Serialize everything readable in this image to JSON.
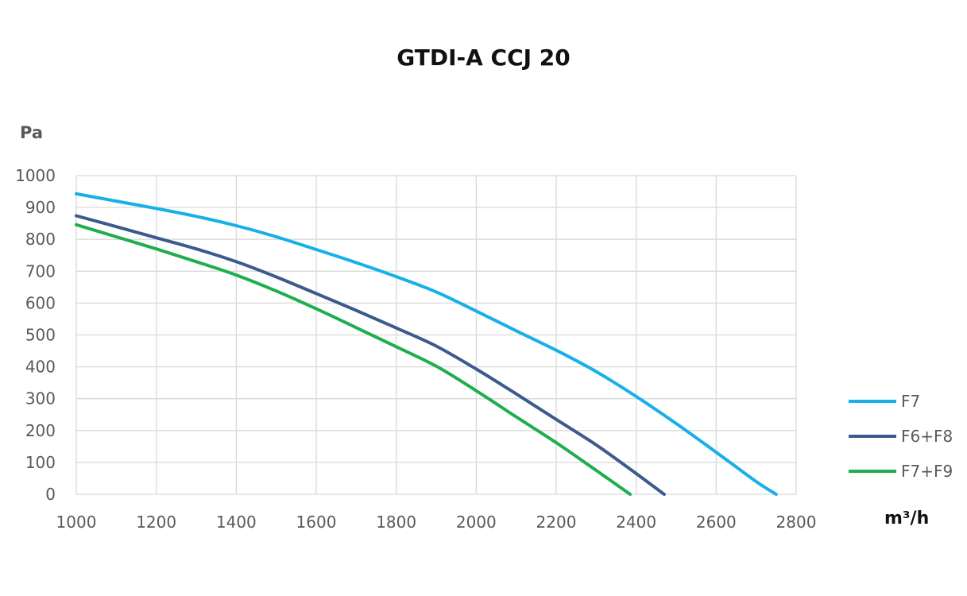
{
  "chart_data": {
    "type": "line",
    "title": "GTDI-A CCJ 20",
    "ylabel": "Pa",
    "xlabel": "m³/h",
    "xlim": [
      1000,
      2800
    ],
    "ylim": [
      0,
      1000
    ],
    "xticks": [
      1000,
      1200,
      1400,
      1600,
      1800,
      2000,
      2200,
      2400,
      2600,
      2800
    ],
    "yticks": [
      0,
      100,
      200,
      300,
      400,
      500,
      600,
      700,
      800,
      900,
      1000
    ],
    "grid": true,
    "legend_position": "right",
    "series": [
      {
        "name": "F7",
        "color": "#18b0e8",
        "x": [
          1000,
          1100,
          1200,
          1300,
          1400,
          1500,
          1600,
          1700,
          1800,
          1900,
          2000,
          2100,
          2200,
          2300,
          2400,
          2500,
          2600,
          2700,
          2750
        ],
        "y": [
          943,
          920,
          897,
          872,
          843,
          808,
          768,
          727,
          683,
          635,
          575,
          513,
          452,
          385,
          307,
          222,
          132,
          40,
          0
        ]
      },
      {
        "name": "F6+F8",
        "color": "#3c5a8e",
        "x": [
          1000,
          1100,
          1200,
          1300,
          1400,
          1500,
          1600,
          1700,
          1800,
          1900,
          2000,
          2100,
          2200,
          2300,
          2400,
          2470
        ],
        "y": [
          874,
          840,
          805,
          770,
          730,
          682,
          630,
          577,
          522,
          465,
          393,
          315,
          235,
          155,
          65,
          0
        ]
      },
      {
        "name": "F7+F9",
        "color": "#1fae4e",
        "x": [
          1000,
          1100,
          1200,
          1300,
          1400,
          1500,
          1600,
          1700,
          1800,
          1900,
          2000,
          2100,
          2200,
          2300,
          2385
        ],
        "y": [
          846,
          808,
          770,
          730,
          688,
          638,
          582,
          523,
          463,
          402,
          325,
          243,
          162,
          75,
          0
        ]
      }
    ]
  }
}
